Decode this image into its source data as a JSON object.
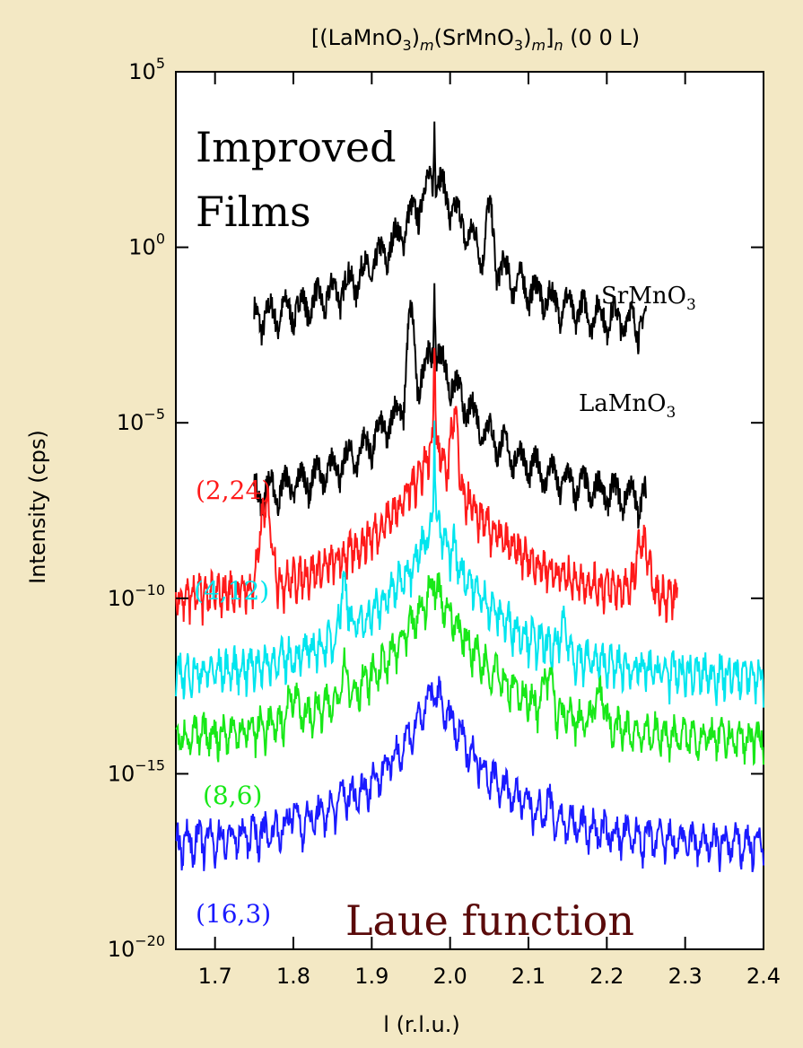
{
  "chart_data": {
    "type": "line",
    "title_main": "[(LaMnO",
    "title_sub1": "3",
    "title_mid1": ")",
    "title_m1": "m",
    "title_mid2": "(SrMnO",
    "title_sub2": "3",
    "title_mid3": ")",
    "title_m2": "m",
    "title_mid4": "]",
    "title_n": "n",
    "title_end": " (0 0 L)",
    "xlabel": "l (r.l.u.)",
    "ylabel": "Intensity (cps)",
    "xlim": [
      1.65,
      2.4
    ],
    "ylim_log10": [
      -20,
      5
    ],
    "y_scale": "log",
    "x_ticks": [
      "1.7",
      "1.8",
      "1.9",
      "2.0",
      "2.1",
      "2.2",
      "2.3",
      "2.4"
    ],
    "x_tick_values": [
      1.7,
      1.8,
      1.9,
      2.0,
      2.1,
      2.2,
      2.3,
      2.4
    ],
    "y_ticks": [
      {
        "base": "10",
        "exp": "5",
        "value": 5
      },
      {
        "base": "10",
        "exp": "0",
        "value": 0
      },
      {
        "base": "10",
        "exp": "−5",
        "value": -5
      },
      {
        "base": "10",
        "exp": "−10",
        "value": -10
      },
      {
        "base": "10",
        "exp": "−15",
        "value": -15
      },
      {
        "base": "10",
        "exp": "−20",
        "value": -20
      }
    ],
    "annotations": {
      "improved1": "Improved",
      "improved2": "Films",
      "laue": "Laue function",
      "sr": "SrMnO",
      "sr_sub": "3",
      "la": "LaMnO",
      "la_sub": "3"
    },
    "series": [
      {
        "label": "",
        "color": "#000000",
        "x_range": [
          1.75,
          2.25
        ],
        "peak_x": 1.98,
        "peak_log": 4,
        "base_log": -2.5,
        "sat_x": [
          1.95,
          2.05
        ],
        "sat_log": [
          -1.8,
          0.8
        ],
        "fringe": 0.02
      },
      {
        "label": "",
        "color": "#000000",
        "x_range": [
          1.75,
          2.25
        ],
        "peak_x": 1.98,
        "peak_log": -0.5,
        "base_log": -7.5,
        "sat_x": [
          1.95,
          2.0
        ],
        "sat_log": [
          -2.2,
          -4.5
        ],
        "fringe": 0.02
      },
      {
        "label": "(2,24)",
        "color": "#ff1a1a",
        "x_range": [
          1.65,
          2.29
        ],
        "peak_x": 1.98,
        "peak_log": -2.0,
        "base_log": -10.2,
        "sat_x": [
          1.765,
          2.005,
          2.245
        ],
        "sat_log": [
          -7.5,
          -4.9,
          -8.5
        ],
        "fringe": 0.008
      },
      {
        "label": "(4,12)",
        "color": "#00e5ee",
        "x_range": [
          1.65,
          2.4
        ],
        "peak_x": 1.98,
        "peak_log": -4.8,
        "base_log": -12.4,
        "sat_x": [
          1.865,
          2.005,
          2.145
        ],
        "sat_log": [
          -9.8,
          -8.6,
          -11.0
        ],
        "fringe": 0.01
      },
      {
        "label": "(8,6)",
        "color": "#18e818",
        "x_range": [
          1.65,
          2.4
        ],
        "peak_x": 1.98,
        "peak_log": -9.2,
        "base_log": -14.2,
        "sat_x": [
          1.8,
          1.865,
          1.93,
          2.0,
          2.06,
          2.125,
          2.19
        ],
        "sat_log": [
          -12.8,
          -12.1,
          -11.6,
          -11.5,
          -12.0,
          -12.3,
          -12.8
        ],
        "fringe": 0.012
      },
      {
        "label": "(16,3)",
        "color": "#1a1aff",
        "x_range": [
          1.65,
          2.4
        ],
        "peak_x": 1.98,
        "peak_log": -13.0,
        "base_log": -17.2,
        "sat_x": [
          1.8,
          1.865,
          1.93,
          1.95,
          2.0,
          2.03,
          2.06,
          2.125
        ],
        "sat_log": [
          -16.2,
          -15.6,
          -14.9,
          -14.5,
          -14.6,
          -14.9,
          -15.4,
          -16.0
        ],
        "fringe": 0.014
      }
    ]
  }
}
